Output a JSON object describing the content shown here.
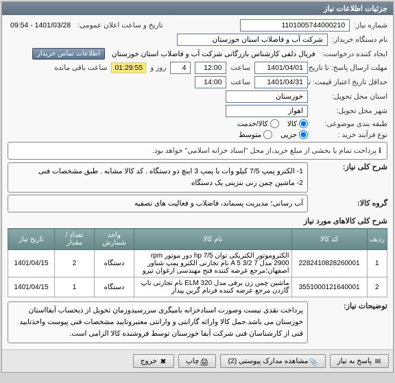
{
  "panel": {
    "title": "جزئیات اطلاعات نیاز"
  },
  "fields": {
    "need_no_lbl": "شماره نیاز:",
    "need_no": "1101005744000210",
    "buyer_lbl": "نام دستگاه خریدار:",
    "buyer": "شرکت آب و فاضلاب استان خوزستان",
    "requester_lbl": "ایجاد کننده درخواست:",
    "requester": "فریال دلفی کارشناس بازرگانی شرکت آب و فاضلاب استان خوزستان",
    "contact_btn": "اطلاعات تماس خریدار",
    "deadline_lbl": "مهلت ارسال پاسخ: تا تاریخ:",
    "deadline_date": "1401/04/01",
    "deadline_time_lbl": "ساعت",
    "deadline_time": "12:00",
    "days_lbl": "روز و",
    "days": "4",
    "timer": "01:29:55",
    "timer_suffix": "ساعت باقی مانده",
    "valid_lbl": "حداقل تاریخ اعتبار قیمت: تا تاریخ:",
    "valid_date": "1401/04/31",
    "valid_time_lbl": "ساعت",
    "valid_time": "14:00",
    "province_lbl": "استان محل تحویل:",
    "province": "خوزستان",
    "city_lbl": "شهر محل تحویل:",
    "city": "اهواز",
    "class_lbl": "طبقه بندی موضوعی:",
    "class_goods": "کالا",
    "class_service": "کالا/خدمت",
    "process_lbl": "نوع فرآیند خرید :",
    "process_small": "جزیی",
    "process_medium": "متوسط",
    "note": "پرداخت تمام یا بخشی از مبلغ خرید،از محل \"اسناد خزانه اسلامی\" خواهد بود.",
    "summary_lbl": "شرح کلی نیاز:",
    "summary": "1- الکترو پمپ 7/5 کیلو وات با پمپ 3 اینچ  دو دستگاه . کد کالا مشابه . طبق مشخصات فنی\n2- ماشین چمن زنی بنزینی یک دستگاه",
    "group_lbl": "گروه کالا:",
    "group": "آب رسانی؛ مدیریت پسماند، فاضلاب و فعالیت های تصفیه",
    "items_lbl": "شرح کلی کالاهای مورد نیاز",
    "desc_lbl": "توضیحات نیاز:",
    "desc": "پرداخت نقدی نیست وصورت اسنادخزانه بامیگری سررسیدوزمان تحویل از ذیحساب آبفااستان خوزستان می باشد.حمل کالا واراثه گارانتی و وارانتی معتبروتایید مشخصات فنی پیوست واخذتایید فنی از کارشناسان فنی شرکت آبفا خوزستان توسط فروشنده کالا الزامی است.",
    "announce_lbl": "تاریخ و ساعت اعلان عمومی:",
    "announce": "1401/03/28 - 09:54"
  },
  "table": {
    "headers": [
      "ردیف",
      "کد کالا",
      "نام کالا",
      "واحد شمارش",
      "تعداد / مقدار",
      "تاریخ نیاز"
    ],
    "rows": [
      [
        "1",
        "2282410828260001",
        "الکتروموتور الکتریکی توان hp 7/5 دور موتور rpm 2900 مدل 7 A 5 3/2 نام تجارتی الکترو پمپ شناور اصفهان؛مرجع عرضه کننده فتح مهندسی ارغوان نیرو",
        "دستگاه",
        "2",
        "1401/04/15"
      ],
      [
        "2",
        "3551000121640001",
        "ماشین چمن زن برقی مدل ELM 320 نام تجارتی تاپ گاردن مرجع عرضه کننده فرنام گرین پیدار",
        "دستگاه",
        "1",
        "1401/04/15"
      ]
    ],
    "col_widths": [
      "26px",
      "110px",
      "auto",
      "58px",
      "58px",
      "68px"
    ]
  },
  "footer": {
    "answer": "پاسخ به نیاز",
    "attachments": "مشاهده مدارک پیوستی (2)",
    "print": "چاپ",
    "close": "خروج"
  },
  "colors": {
    "header_grad_top": "#7a8a9a",
    "header_grad_bot": "#607080",
    "th_bg_top": "#88aaaa",
    "th_bg_bot": "#668888"
  }
}
